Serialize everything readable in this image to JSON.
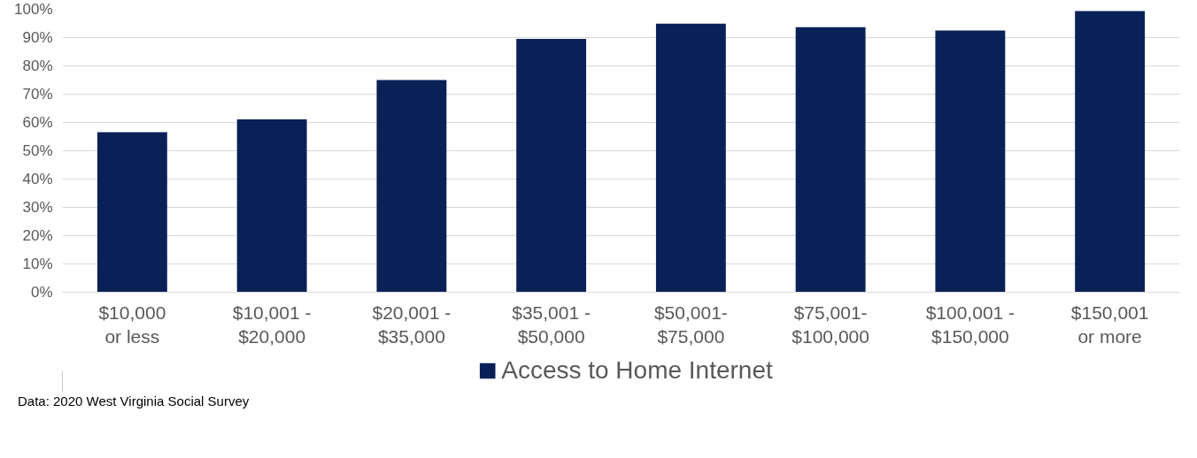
{
  "chart_data": {
    "type": "bar",
    "categories": [
      "$10,000 or less",
      "$10,001 - $20,000",
      "$20,001 - $35,000",
      "$35,001 - $50,000",
      "$50,001-$75,000",
      "$75,001-$100,000",
      "$100,001 - $150,000",
      "$150,001 or more"
    ],
    "series": [
      {
        "name": "Access to Home Internet",
        "color": "#0a2158",
        "values": [
          56.6,
          61.1,
          75.0,
          89.5,
          94.9,
          93.7,
          92.5,
          99.4
        ]
      }
    ],
    "ylim": [
      0,
      100
    ],
    "yticks": [
      {
        "value": 0,
        "label": "0%"
      },
      {
        "value": 10,
        "label": "10%"
      },
      {
        "value": 20,
        "label": "20%"
      },
      {
        "value": 30,
        "label": "30%"
      },
      {
        "value": 40,
        "label": "40%"
      },
      {
        "value": 50,
        "label": "50%"
      },
      {
        "value": 60,
        "label": "60%"
      },
      {
        "value": 70,
        "label": "70%"
      },
      {
        "value": 80,
        "label": "80%"
      },
      {
        "value": 90,
        "label": "90%"
      },
      {
        "value": 100,
        "label": "100%"
      }
    ],
    "grid": "y",
    "legend": "bottom",
    "annotations": [
      "Data: 2020 West Virginia Social Survey"
    ]
  }
}
